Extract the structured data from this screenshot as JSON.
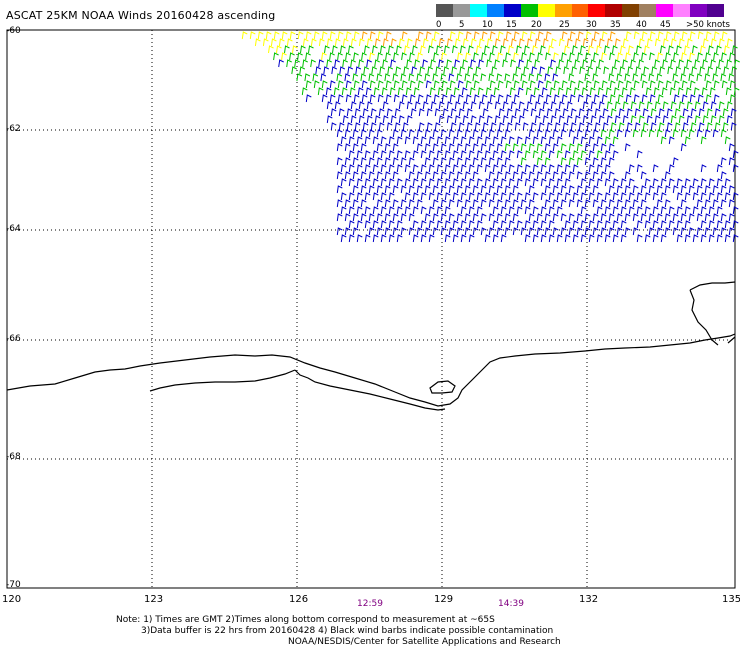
{
  "title": "ASCAT 25KM NOAA Winds 20160428 ascending",
  "legend": {
    "ticks": [
      "0",
      "5",
      "10",
      "15",
      "20",
      "25",
      "30",
      "35",
      "40",
      "45",
      ">50 knots"
    ],
    "colors": [
      "#555555",
      "#999999",
      "#00ffff",
      "#0080ff",
      "#0000c8",
      "#00c000",
      "#ffff00",
      "#ffa000",
      "#ff6000",
      "#ff0000",
      "#b00000",
      "#804000",
      "#a08060",
      "#ff00ff",
      "#ff80ff",
      "#8000c0",
      "#500090"
    ]
  },
  "axes": {
    "lat_labels": [
      "-60",
      "-62",
      "-64",
      "-66",
      "-68",
      "-70"
    ],
    "lon_labels": [
      "120",
      "123",
      "126",
      "129",
      "132",
      "135"
    ]
  },
  "times": [
    "12:59",
    "14:39"
  ],
  "notes": [
    "Note: 1) Times are GMT 2)Times along bottom correspond to measurement at ~65S",
    "3)Data buffer is 22 hrs from 20160428 4) Black wind barbs indicate possible contamination",
    "NOAA/NESDIS/Center for Satellite Applications and Research"
  ],
  "colors": {
    "blue": "#0000c8",
    "green": "#00c000",
    "yellow": "#ffff00",
    "orange": "#ffa000",
    "coastline": "#000000",
    "grid": "#000000",
    "time_text": "#800080"
  }
}
